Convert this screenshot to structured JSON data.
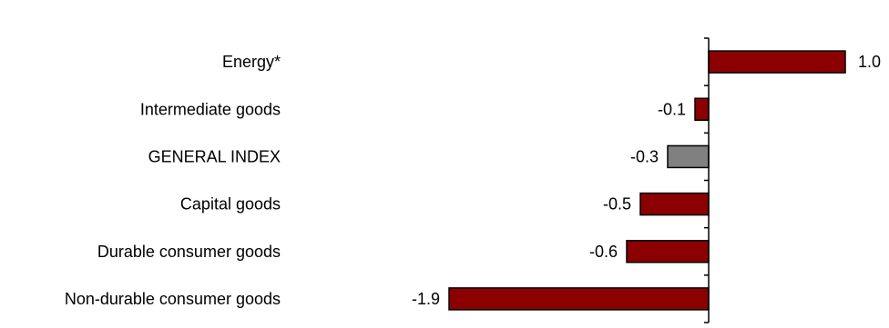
{
  "chart_data": {
    "type": "bar",
    "orientation": "horizontal",
    "categories": [
      "Energy*",
      "Intermediate goods",
      "GENERAL INDEX",
      "Capital goods",
      "Durable consumer goods",
      "Non-durable consumer goods"
    ],
    "values": [
      1.0,
      -0.1,
      -0.3,
      -0.5,
      -0.6,
      -1.9
    ],
    "value_labels": [
      "1.0",
      "-0.1",
      "-0.3",
      "-0.5",
      "-0.6",
      "-1.9"
    ],
    "bar_colors": [
      "#8b0000",
      "#8b0000",
      "#808080",
      "#8b0000",
      "#8b0000",
      "#8b0000"
    ],
    "xlim": [
      -2.0,
      1.2
    ],
    "grid": false,
    "legend": "none"
  }
}
